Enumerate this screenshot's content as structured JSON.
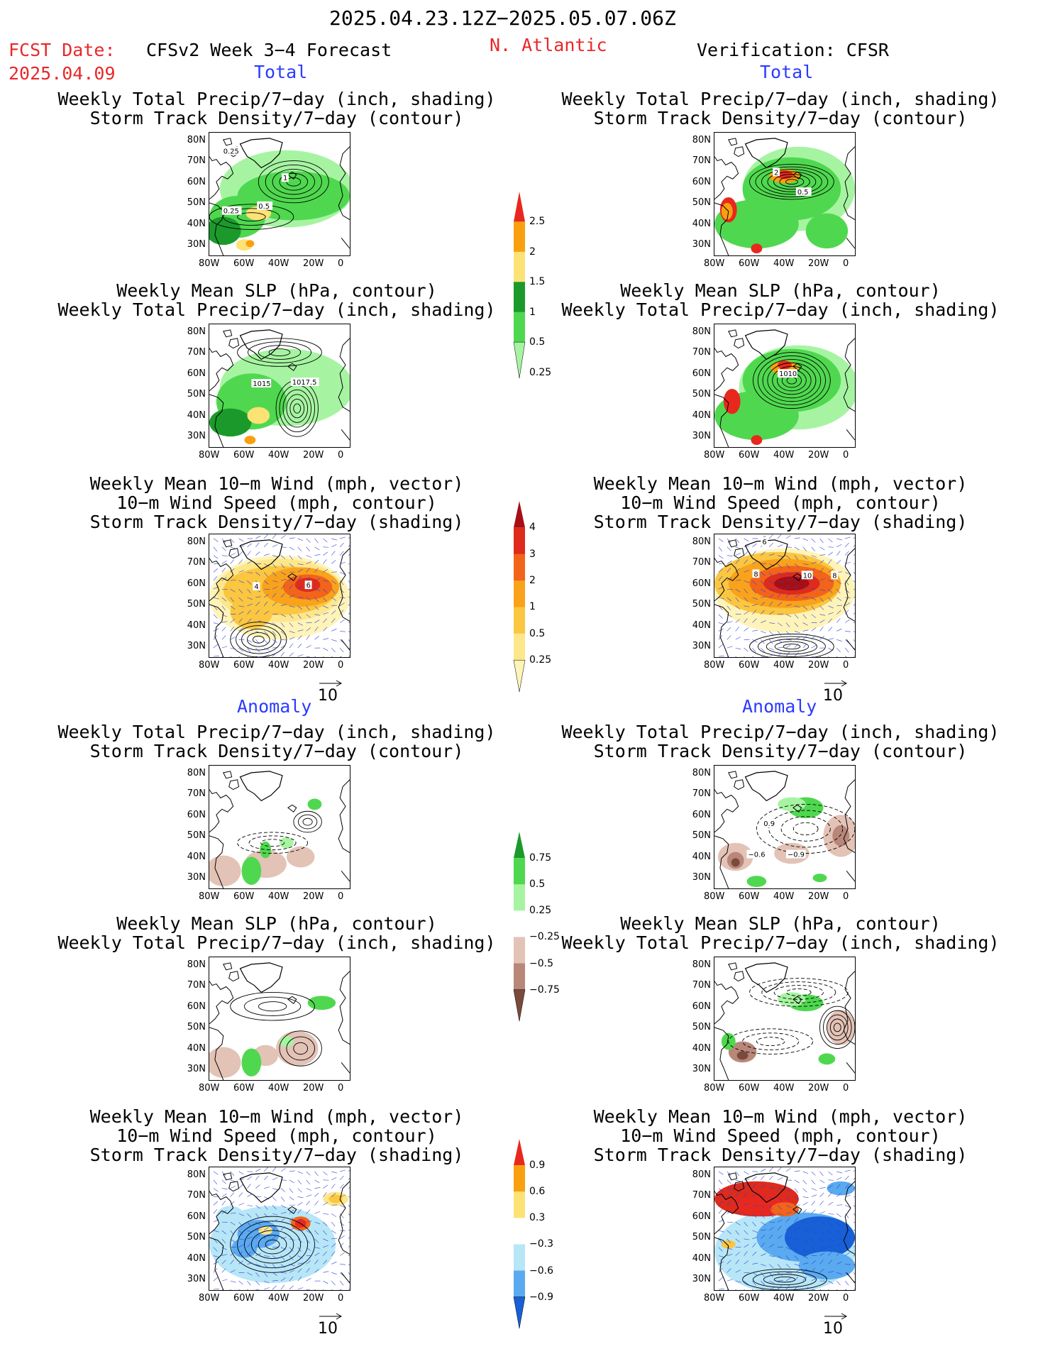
{
  "header": {
    "period": "2025.04.23.12Z−2025.05.07.06Z",
    "fcst_label": "FCST Date:",
    "fcst_date": "2025.04.09",
    "forecast": "CFSv2 Week 3−4 Forecast",
    "region": "N. Atlantic",
    "verification": "Verification: CFSR"
  },
  "sections": {
    "total": "Total",
    "anomaly": "Anomaly"
  },
  "panel_titles": {
    "precip_track": [
      "Weekly Total Precip/7−day (inch, shading)",
      "Storm Track Density/7−day (contour)"
    ],
    "slp_precip": [
      "Weekly Mean SLP (hPa, contour)",
      "Weekly Total Precip/7−day (inch, shading)"
    ],
    "wind_track": [
      "Weekly Mean 10−m Wind (mph, vector)",
      "10−m Wind Speed (mph, contour)",
      "Storm Track Density/7−day (shading)"
    ]
  },
  "axes": {
    "lat_ticks": [
      "80N",
      "70N",
      "60N",
      "50N",
      "40N",
      "30N"
    ],
    "lon_ticks": [
      "80W",
      "60W",
      "40W",
      "20W",
      "0"
    ]
  },
  "vector_ref": "10",
  "contour_labels": {
    "p1": [
      "0.25",
      "1",
      "0.5",
      "0.25"
    ],
    "p2": [
      "2",
      "0.5"
    ],
    "p3": [
      "1015",
      "1017.5"
    ],
    "p4": [
      "1010"
    ],
    "p5": [
      "4",
      "6"
    ],
    "p6": [
      "6",
      "8",
      "10",
      "8"
    ],
    "p8": [
      "0.9",
      "−0.6",
      "−0.9"
    ]
  },
  "colorbars": {
    "precip_total": {
      "labels": [
        "2.5",
        "2",
        "1.5",
        "1",
        "0.5",
        "0.25"
      ],
      "colors": [
        "#e8281e",
        "#f9a011",
        "#fde275",
        "#1b9a2b",
        "#4fd84f",
        "#a6f4a2"
      ]
    },
    "track_total": {
      "labels": [
        "4",
        "3",
        "2",
        "1",
        "0.5",
        "0.25"
      ],
      "colors": [
        "#a50f15",
        "#de2b1c",
        "#f2641a",
        "#f9a21b",
        "#fbc640",
        "#fde78a",
        "#fff4b8"
      ]
    },
    "precip_anom": {
      "labels": [
        "0.75",
        "0.5",
        "0.25",
        "−0.25",
        "−0.5",
        "−0.75"
      ],
      "colors": [
        "#1b9a2b",
        "#4fd84f",
        "#a6f4a2",
        "#ffffff",
        "#e3c3b6",
        "#b8877a",
        "#7a4a3c"
      ]
    },
    "track_anom": {
      "labels": [
        "0.9",
        "0.6",
        "0.3",
        "−0.3",
        "−0.6",
        "−0.9"
      ],
      "colors": [
        "#e8281e",
        "#f9a011",
        "#fde275",
        "#ffffff",
        "#b7e6f7",
        "#5aaaf0",
        "#1760d6"
      ]
    }
  },
  "colors": {
    "title_red": "#e8282a",
    "label_blue": "#2a3bff"
  }
}
